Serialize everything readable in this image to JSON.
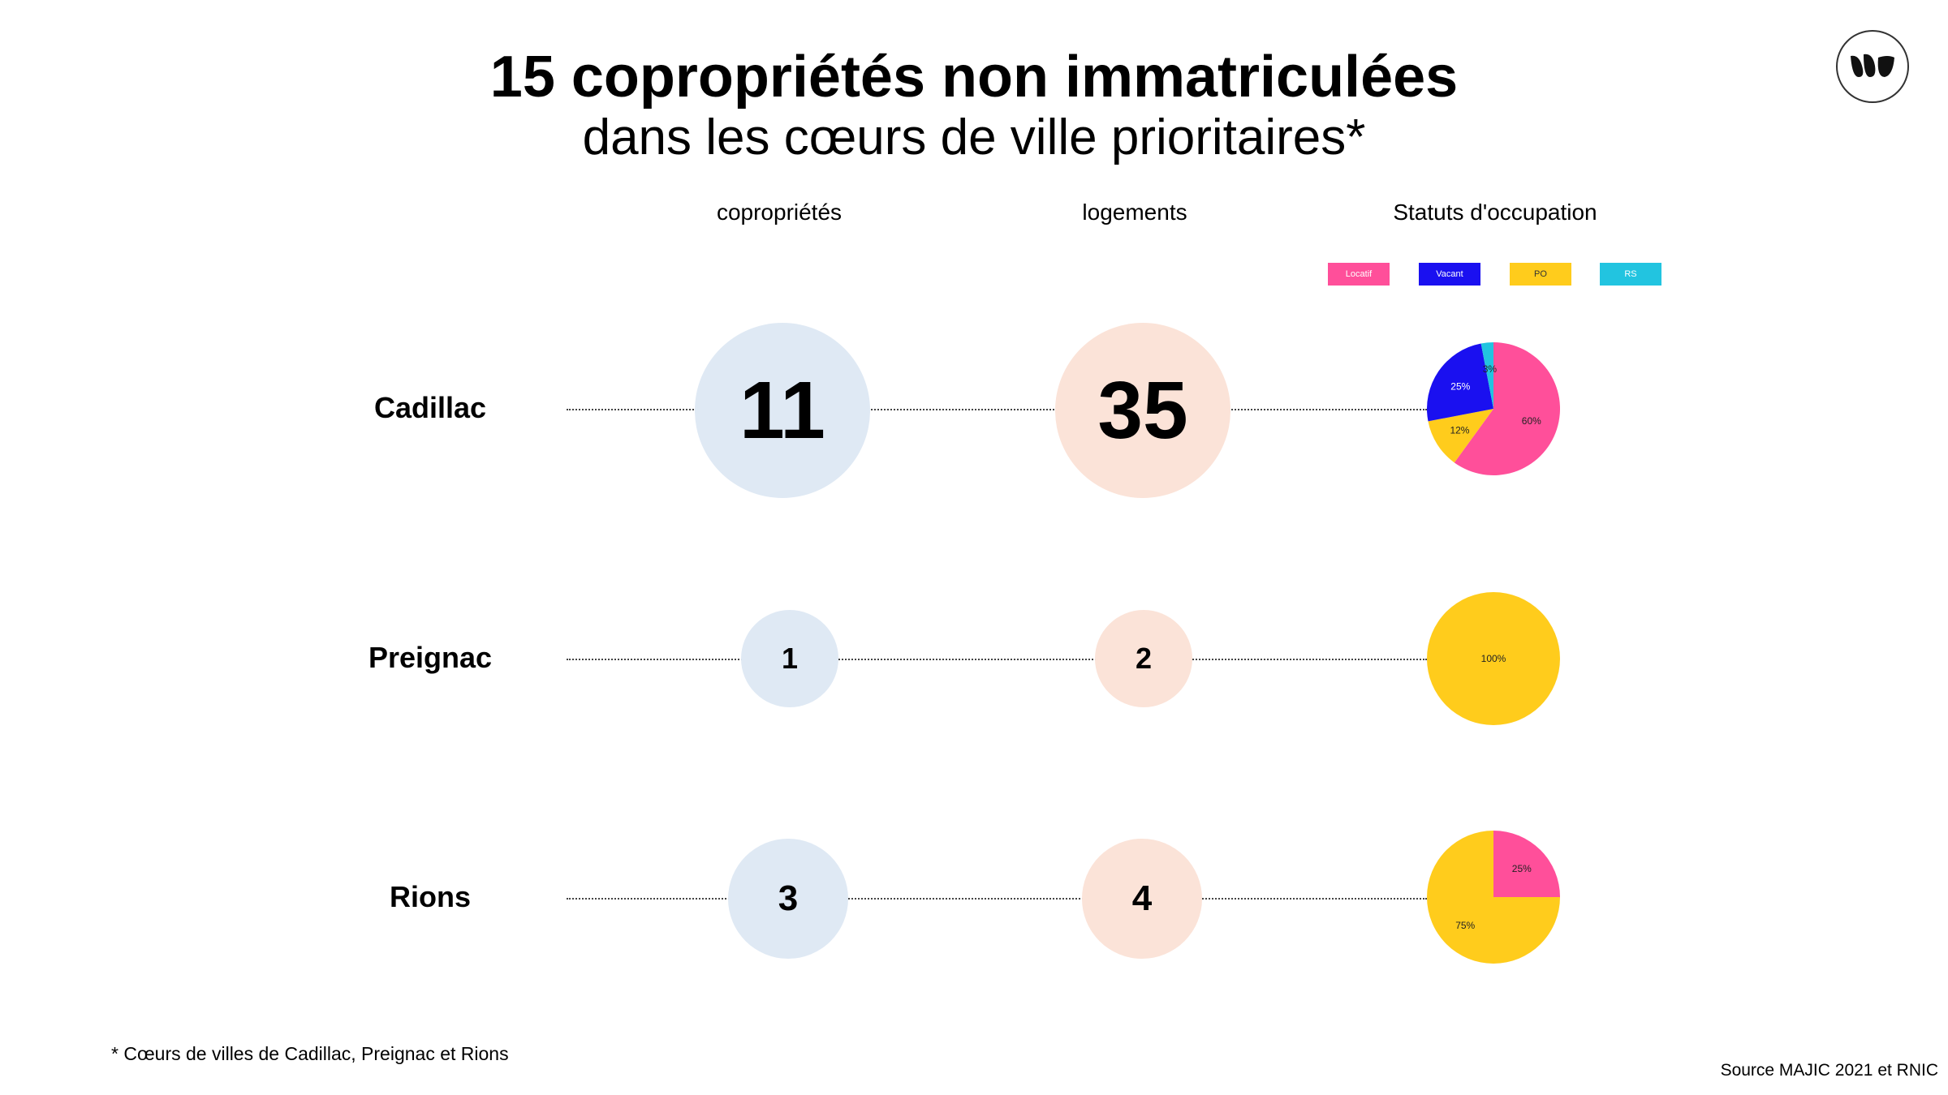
{
  "title": "15 copropriétés non immatriculées",
  "subtitle": "dans les cœurs de ville prioritaires*",
  "columns": {
    "coproprietes": "copropriétés",
    "logements": "logements",
    "statuts": "Statuts d'occupation"
  },
  "legend": [
    {
      "label": "Locatif",
      "color": "#ff4f9a"
    },
    {
      "label": "Vacant",
      "color": "#1a10f0"
    },
    {
      "label": "PO",
      "color": "#ffcc1c"
    },
    {
      "label": "RS",
      "color": "#22c4e0"
    }
  ],
  "colors": {
    "copro_bubble": "#dfe9f4",
    "logement_bubble": "#fbe3d8"
  },
  "rows": [
    {
      "city": "Cadillac",
      "coproprietes": "11",
      "logements": "35"
    },
    {
      "city": "Preignac",
      "coproprietes": "1",
      "logements": "2"
    },
    {
      "city": "Rions",
      "coproprietes": "3",
      "logements": "4"
    }
  ],
  "chart_data": [
    {
      "type": "pie",
      "title": "Cadillac",
      "categories": [
        "Locatif",
        "PO",
        "Vacant",
        "RS"
      ],
      "values": [
        60,
        12,
        25,
        3
      ],
      "labels": [
        "60%",
        "12%",
        "25%",
        "3%"
      ]
    },
    {
      "type": "pie",
      "title": "Preignac",
      "categories": [
        "PO"
      ],
      "values": [
        100
      ],
      "labels": [
        "100%"
      ]
    },
    {
      "type": "pie",
      "title": "Rions",
      "categories": [
        "Locatif",
        "PO"
      ],
      "values": [
        25,
        75
      ],
      "labels": [
        "25%",
        "75%"
      ]
    }
  ],
  "footnote": "* Cœurs de villes de Cadillac, Preignac et Rions",
  "source": "Source MAJIC 2021  et RNIC"
}
